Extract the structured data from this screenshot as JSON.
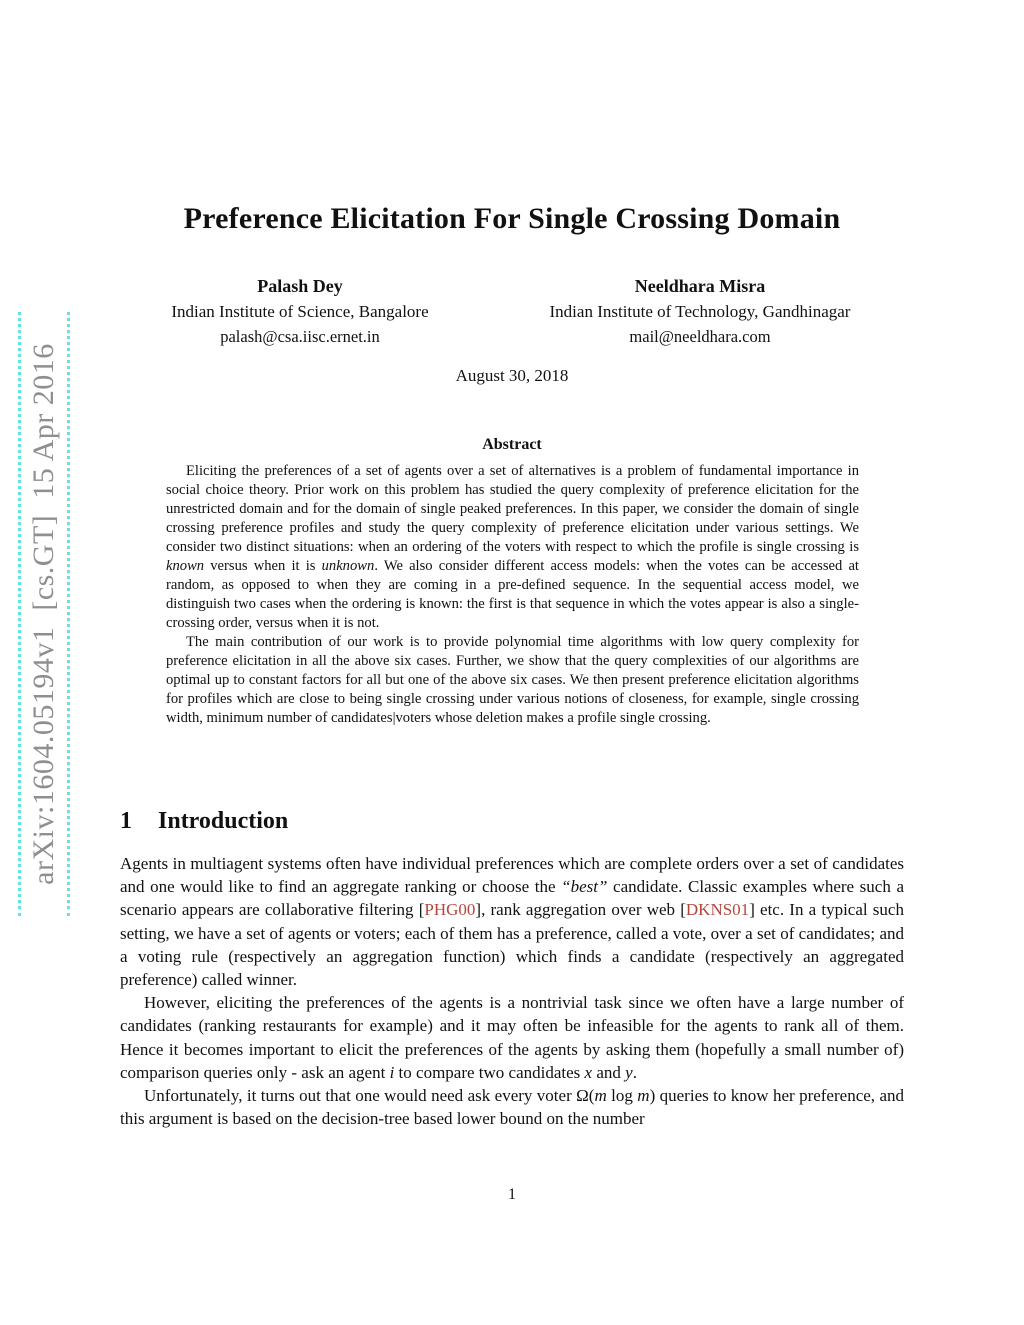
{
  "colors": {
    "citation": "#b5453c",
    "stamp_text": "#8f8f8f",
    "stamp_dots": "#63e2e2"
  },
  "arxiv_stamp": {
    "text": "arXiv:1604.05194v1  [cs.GT]  15 Apr 2016"
  },
  "header": {
    "title": "Preference Elicitation For Single Crossing Domain",
    "date": "August 30, 2018"
  },
  "authors": [
    {
      "name": "Palash Dey",
      "affiliation": "Indian Institute of Science, Bangalore",
      "email": "palash@csa.iisc.ernet.in"
    },
    {
      "name": "Neeldhara Misra",
      "affiliation": "Indian Institute of Technology, Gandhinagar",
      "email": "mail@neeldhara.com"
    }
  ],
  "abstract": {
    "heading": "Abstract",
    "paragraphs": [
      [
        {
          "t": "Eliciting the preferences of a set of agents over a set of alternatives is a problem of fundamental importance in social choice theory.  Prior work on this problem has studied the query complexity of preference elicitation for the unrestricted domain and for the domain of single peaked preferences. In this paper, we consider the domain of single crossing preference profiles and study the query complexity of preference elicitation under various settings.  We consider two distinct situations: when an ordering of the voters with respect to which the profile is single crossing is "
        },
        {
          "t": "known",
          "i": true
        },
        {
          "t": " versus when it is "
        },
        {
          "t": "unknown",
          "i": true
        },
        {
          "t": ". We also consider different access models: when the votes can be accessed at random, as opposed to when they are coming in a pre-defined sequence. In the sequential access model, we distinguish two cases when the ordering is known: the first is that sequence in which the votes appear is also a single-crossing order, versus when it is not."
        }
      ],
      [
        {
          "t": "The main contribution of our work is to provide polynomial time algorithms with low query complexity for preference elicitation in all the above six cases.  Further, we show that the query complexities of our algorithms are optimal up to constant factors for all but one of the above six cases.  We then present preference elicitation algorithms for profiles which are close to being single crossing under various notions of closeness, for example, single crossing width, minimum number of candidates|voters whose deletion makes a profile single crossing."
        }
      ]
    ]
  },
  "section": {
    "number": "1",
    "title": "Introduction"
  },
  "body": {
    "paragraphs": [
      [
        {
          "t": "Agents in multiagent systems often have individual preferences which are complete orders over a set of candidates and one would like to find an aggregate ranking or choose the "
        },
        {
          "t": "“best”",
          "i": true
        },
        {
          "t": " candidate.  Classic examples where such a scenario appears are collaborative filtering ["
        },
        {
          "t": "PHG00",
          "c": true
        },
        {
          "t": "], rank aggregation over web ["
        },
        {
          "t": "DKNS01",
          "c": true
        },
        {
          "t": "] etc.  In a typical such setting, we have a set of agents or voters; each of them has a preference, called a vote, over a set of candidates; and a voting rule (respectively an aggregation function) which finds a candidate (respectively an aggregated preference) called winner."
        }
      ],
      [
        {
          "t": "However, eliciting the preferences of the agents is a nontrivial task since we often have a large number of candidates (ranking restaurants for example) and it may often be infeasible for the agents to rank all of them.  Hence it becomes important to elicit the preferences of the agents by asking them (hopefully a small number of) comparison queries only - ask an agent "
        },
        {
          "t": "i",
          "i": true
        },
        {
          "t": " to compare two candidates "
        },
        {
          "t": "x",
          "i": true
        },
        {
          "t": " and "
        },
        {
          "t": "y",
          "i": true
        },
        {
          "t": "."
        }
      ],
      [
        {
          "t": "Unfortunately, it turns out that one would need ask every voter Ω("
        },
        {
          "t": "m",
          "i": true
        },
        {
          "t": " log ",
          "nosp": true
        },
        {
          "t": "m",
          "i": true
        },
        {
          "t": ") queries to know her preference, and this argument is based on the decision-tree based lower bound on the number"
        }
      ]
    ]
  },
  "footer": {
    "page_number": "1"
  }
}
